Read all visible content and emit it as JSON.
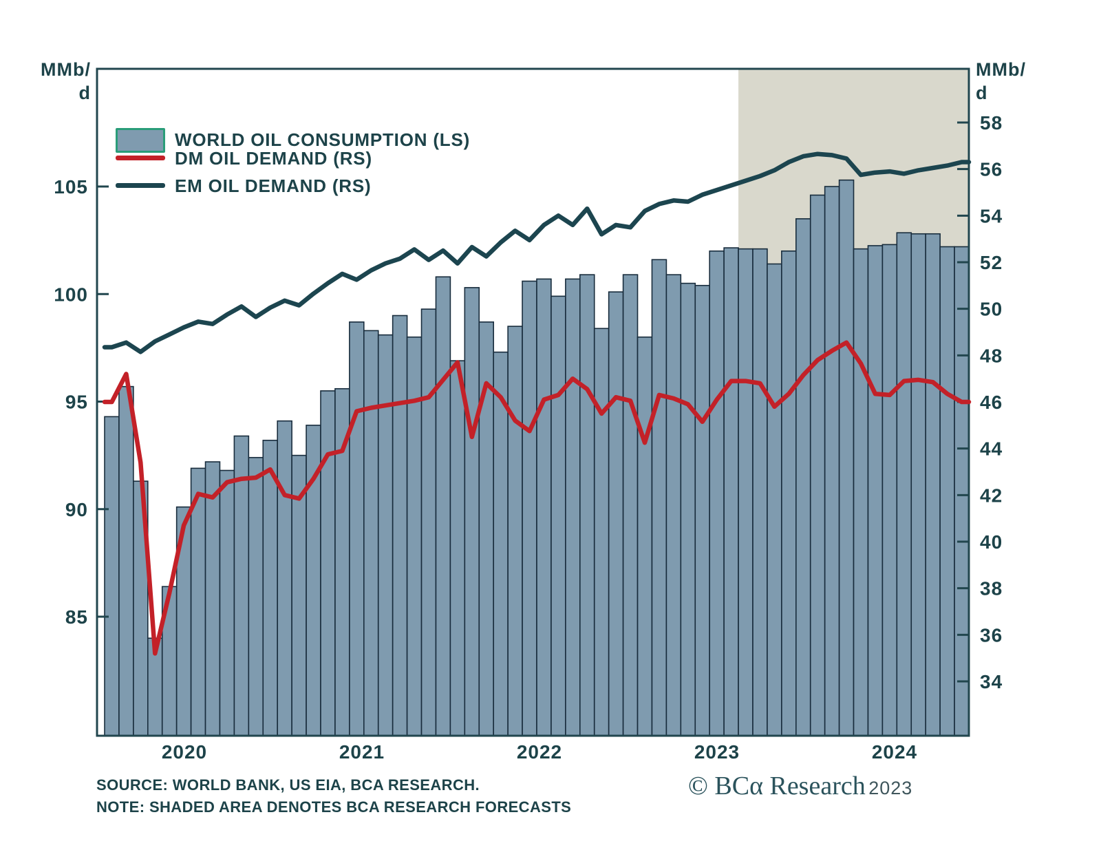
{
  "page": {
    "background": "#ffffff"
  },
  "axis_left_title": {
    "line1": "MMb/",
    "line2": "d"
  },
  "axis_right_title": {
    "line1": "MMb/",
    "line2": "d"
  },
  "legend": {
    "item1": "WORLD OIL CONSUMPTION (LS)",
    "item2": "DM OIL DEMAND (RS)",
    "item3": "EM OIL DEMAND (RS)"
  },
  "footer": {
    "source": "SOURCE: WORLD BANK, US EIA, BCA RESEARCH.",
    "note": "NOTE: SHADED AREA DENOTES BCA RESEARCH FORECASTS",
    "logo_mark": "© BCα Research",
    "logo_year": "2023"
  },
  "colors": {
    "bar_fill": "#7F9BAF",
    "bar_stroke": "#182C3C",
    "dm_line": "#C32128",
    "em_line": "#1C454F",
    "frame": "#21464E",
    "text": "#1D4349",
    "forecast_shade": "#D9D8CC",
    "swatch_border": "#2A9D79"
  },
  "chart_data": {
    "type": "bar",
    "title": "",
    "xlabel": "",
    "ylabel_left": "MMb/d",
    "ylabel_right": "MMb/d",
    "grid": false,
    "legend_position": "top-left",
    "left_axis": {
      "ticks": [
        105,
        100,
        95,
        90,
        85
      ],
      "range_note": "left scale for bars"
    },
    "right_axis": {
      "ticks": [
        58,
        56,
        54,
        52,
        50,
        48,
        46,
        44,
        42,
        40,
        38,
        36,
        34
      ],
      "range_note": "right scale for lines"
    },
    "x_axis": {
      "year_labels": [
        "2020",
        "2021",
        "2022",
        "2023",
        "2024"
      ]
    },
    "forecast": {
      "start_index": 44,
      "label": "SHADED AREA DENOTES BCA RESEARCH FORECASTS"
    },
    "categories": [
      "2020-01",
      "2020-02",
      "2020-03",
      "2020-04",
      "2020-05",
      "2020-06",
      "2020-07",
      "2020-08",
      "2020-09",
      "2020-10",
      "2020-11",
      "2020-12",
      "2021-01",
      "2021-02",
      "2021-03",
      "2021-04",
      "2021-05",
      "2021-06",
      "2021-07",
      "2021-08",
      "2021-09",
      "2021-10",
      "2021-11",
      "2021-12",
      "2022-01",
      "2022-02",
      "2022-03",
      "2022-04",
      "2022-05",
      "2022-06",
      "2022-07",
      "2022-08",
      "2022-09",
      "2022-10",
      "2022-11",
      "2022-12",
      "2023-01",
      "2023-02",
      "2023-03",
      "2023-04",
      "2023-05",
      "2023-06",
      "2023-07",
      "2023-08",
      "2023-09",
      "2023-10",
      "2023-11",
      "2023-12",
      "2024-01",
      "2024-02",
      "2024-03",
      "2024-04",
      "2024-05",
      "2024-06",
      "2024-07",
      "2024-08",
      "2024-09",
      "2024-10",
      "2024-11",
      "2024-12"
    ],
    "series": [
      {
        "name": "WORLD OIL CONSUMPTION (LS)",
        "type": "bar",
        "axis": "left",
        "values": [
          94.3,
          95.7,
          91.3,
          84.0,
          86.4,
          90.1,
          91.9,
          92.2,
          91.8,
          93.4,
          92.4,
          93.2,
          94.1,
          92.5,
          93.9,
          95.5,
          95.6,
          98.7,
          98.3,
          98.1,
          99.0,
          98.0,
          99.3,
          100.8,
          96.9,
          100.3,
          98.7,
          97.3,
          98.5,
          100.6,
          100.7,
          99.9,
          100.7,
          100.9,
          98.4,
          100.1,
          100.9,
          98.0,
          101.6,
          100.9,
          100.5,
          100.4,
          102.0,
          102.15,
          102.1,
          102.1,
          101.4,
          102.0,
          103.5,
          104.6,
          105.0,
          105.3,
          102.1,
          102.25,
          102.3,
          102.85,
          102.8,
          102.8,
          102.2,
          102.2
        ]
      },
      {
        "name": "DM OIL DEMAND (RS)",
        "type": "line",
        "axis": "right",
        "values": [
          46.0,
          47.2,
          43.4,
          35.2,
          37.8,
          40.7,
          42.05,
          41.9,
          42.55,
          42.7,
          42.75,
          43.1,
          42.0,
          41.85,
          42.7,
          43.75,
          43.9,
          45.6,
          45.75,
          45.85,
          45.95,
          46.05,
          46.2,
          46.95,
          47.7,
          44.5,
          46.8,
          46.2,
          45.2,
          44.75,
          46.1,
          46.3,
          47.0,
          46.55,
          45.5,
          46.2,
          46.05,
          44.25,
          46.3,
          46.15,
          45.9,
          45.15,
          46.1,
          46.9,
          46.9,
          46.8,
          45.8,
          46.35,
          47.15,
          47.8,
          48.2,
          48.55,
          47.65,
          46.35,
          46.3,
          46.9,
          46.95,
          46.85,
          46.35,
          46.0
        ]
      },
      {
        "name": "EM OIL DEMAND (RS)",
        "type": "line",
        "axis": "right",
        "values": [
          48.35,
          48.55,
          48.15,
          48.6,
          48.9,
          49.2,
          49.45,
          49.35,
          49.75,
          50.1,
          49.65,
          50.05,
          50.35,
          50.15,
          50.65,
          51.1,
          51.5,
          51.25,
          51.65,
          51.95,
          52.15,
          52.55,
          52.1,
          52.5,
          51.95,
          52.65,
          52.25,
          52.85,
          53.35,
          52.95,
          53.6,
          54.0,
          53.6,
          54.3,
          53.2,
          53.6,
          53.5,
          54.2,
          54.5,
          54.65,
          54.6,
          54.9,
          55.1,
          55.3,
          55.5,
          55.7,
          55.95,
          56.3,
          56.55,
          56.65,
          56.6,
          56.45,
          55.75,
          55.85,
          55.9,
          55.8,
          55.95,
          56.05,
          56.15,
          56.3
        ]
      }
    ]
  }
}
